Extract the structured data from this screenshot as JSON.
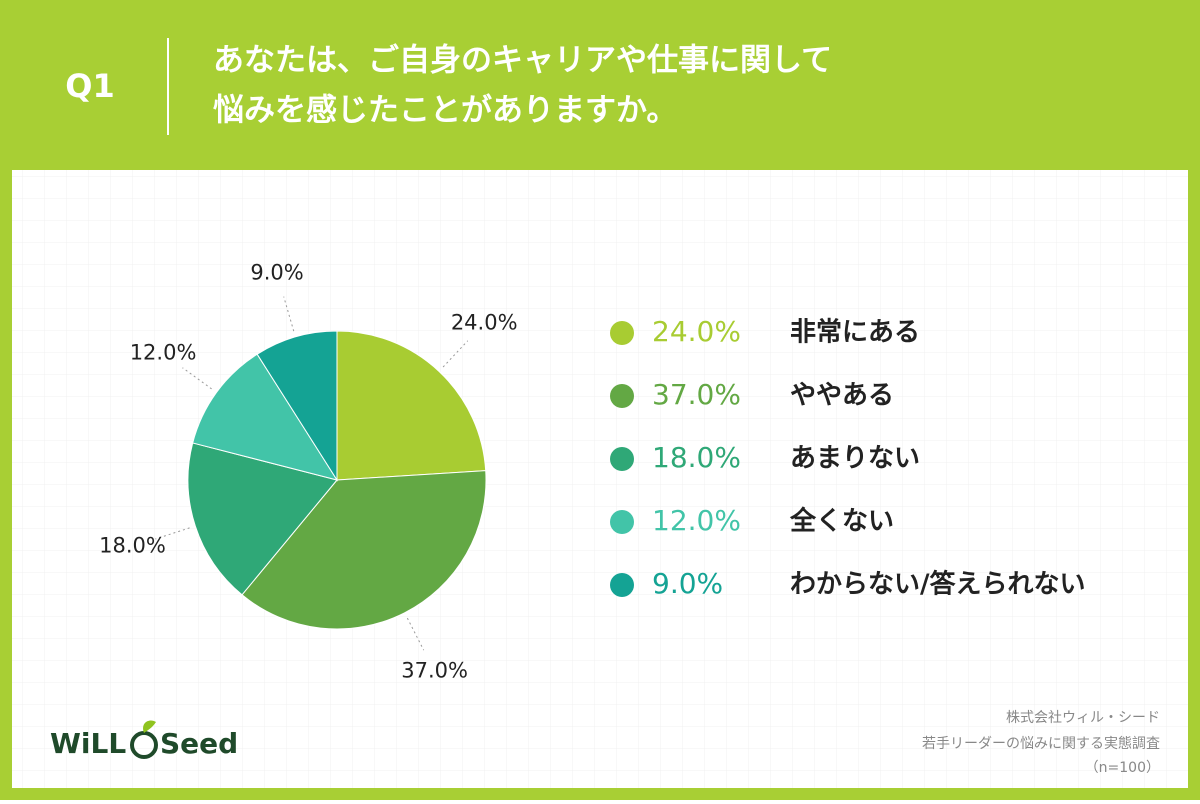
{
  "header": {
    "label": "Q1",
    "title": [
      "あなたは、ご自身のキャリアや仕事に関して",
      "悩みを感じたことがありますか。"
    ]
  },
  "chart_data": {
    "type": "pie",
    "categories": [
      "非常にある",
      "ややある",
      "あまりない",
      "全くない",
      "わからない/答えられない"
    ],
    "values": [
      24,
      37,
      18,
      12,
      9
    ],
    "value_labels": [
      "24.0%",
      "37.0%",
      "18.0%",
      "12.0%",
      "9.0%"
    ],
    "colors": [
      "#a8cc32",
      "#63a844",
      "#2fa877",
      "#42c4a8",
      "#14a394"
    ]
  },
  "footer": {
    "logo": [
      "WiLL",
      "Seed"
    ],
    "source": [
      "株式会社ウィル・シード",
      "若手リーダーの悩みに関する実態調査",
      "（n=100）"
    ]
  }
}
